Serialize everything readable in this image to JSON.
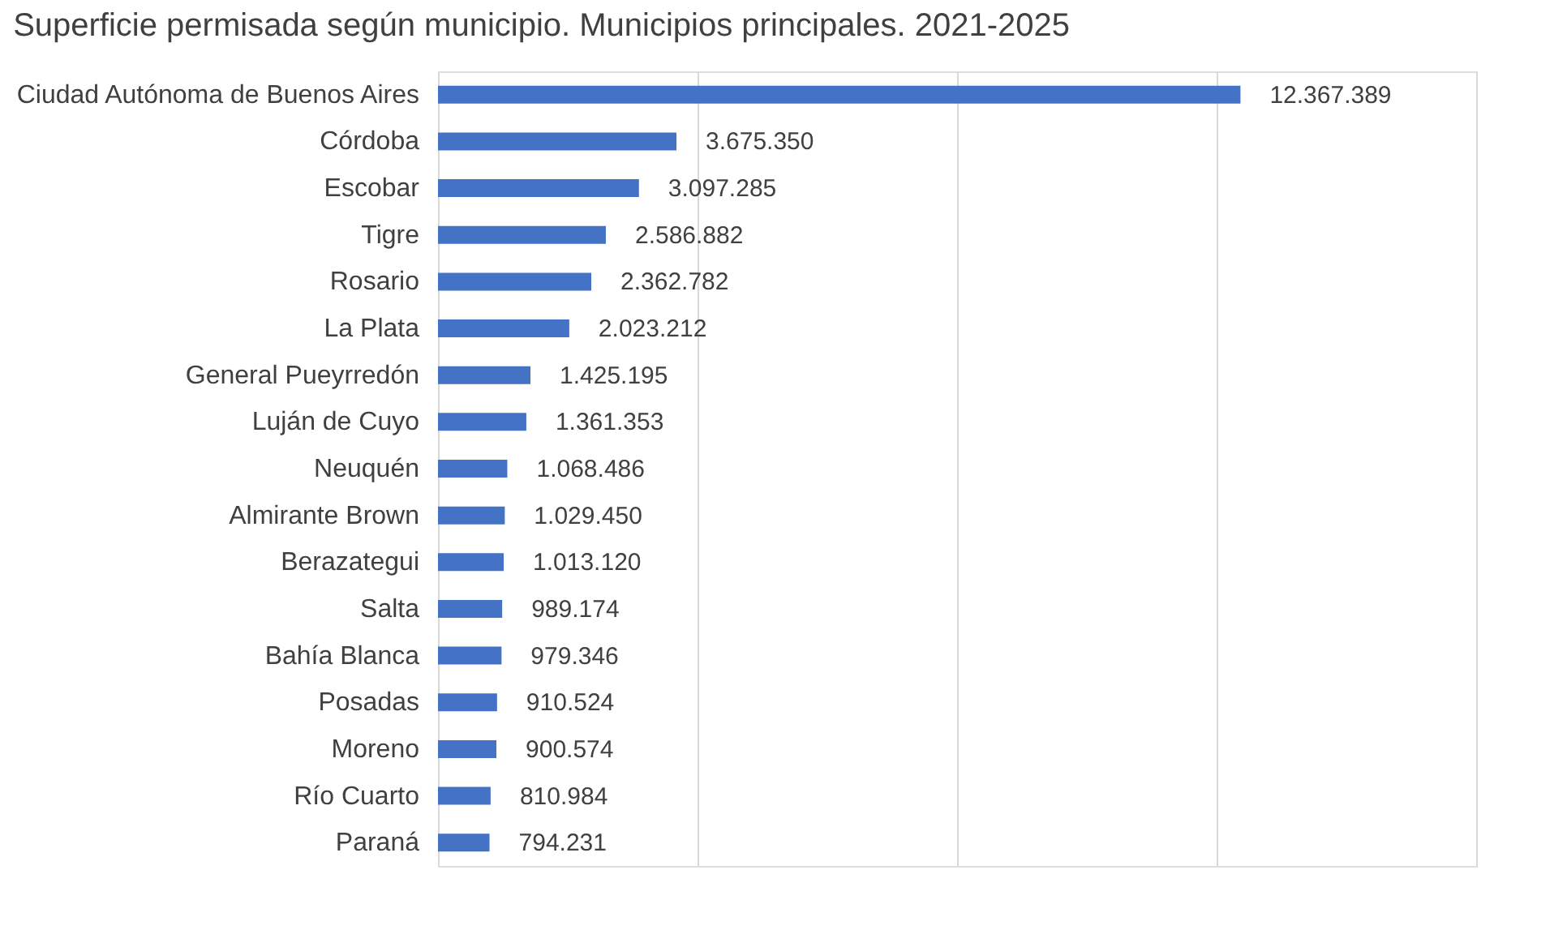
{
  "chart_data": {
    "type": "bar",
    "orientation": "horizontal",
    "title": "Superficie permisada según municipio. Municipios principales. 2021-2025",
    "categories": [
      "Ciudad Autónoma de Buenos Aires",
      "Córdoba",
      "Escobar",
      "Tigre",
      "Rosario",
      "La Plata",
      "General Pueyrredón",
      "Luján de Cuyo",
      "Neuquén",
      "Almirante Brown",
      "Berazategui",
      "Salta",
      "Bahía Blanca",
      "Posadas",
      "Moreno",
      "Río Cuarto",
      "Paraná"
    ],
    "values": [
      12367389,
      3675350,
      3097285,
      2586882,
      2362782,
      2023212,
      1425195,
      1361353,
      1068486,
      1029450,
      1013120,
      989174,
      979346,
      910524,
      900574,
      810984,
      794231
    ],
    "value_labels": [
      "12.367.389",
      "3.675.350",
      "3.097.285",
      "2.586.882",
      "2.362.782",
      "2.023.212",
      "1.425.195",
      "1.361.353",
      "1.068.486",
      "1.029.450",
      "1.013.120",
      "989.174",
      "979.346",
      "910.524",
      "900.574",
      "810.984",
      "794.231"
    ],
    "color": "#4472c4",
    "xlim": [
      0,
      16000000
    ],
    "xticks": [
      {
        "value": 0,
        "label": null
      },
      {
        "value": 4000000,
        "label": null
      },
      {
        "value": 8000000,
        "label": null
      },
      {
        "value": 12000000,
        "label": null
      },
      {
        "value": 16000000,
        "label": null
      }
    ],
    "grid": "x",
    "tick_labels": "y"
  }
}
